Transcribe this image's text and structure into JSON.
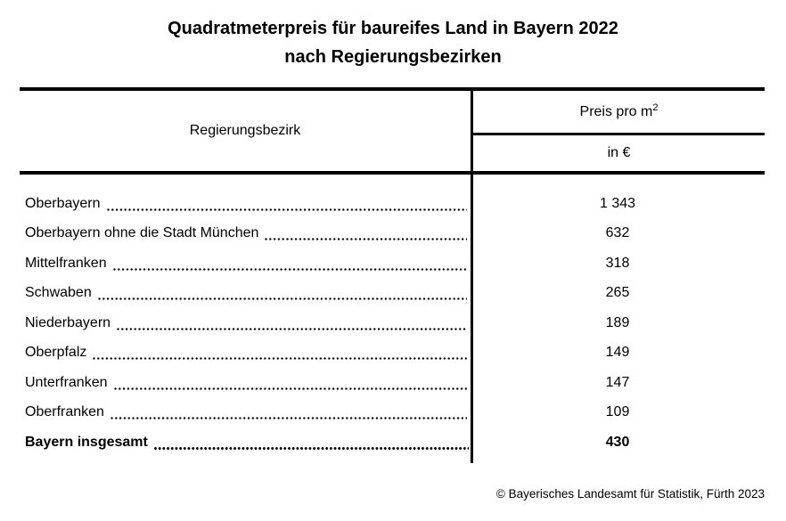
{
  "title": {
    "line1": "Quadratmeterpreis für baureifes Land in Bayern 2022",
    "line2": "nach Regierungsbezirken"
  },
  "table": {
    "col1_header": "Regierungsbezirk",
    "col2_header": "Preis pro m",
    "col2_header_sup": "2",
    "col2_subheader": "in €",
    "rows": [
      {
        "label": "Oberbayern",
        "value": "1 343",
        "bold": false
      },
      {
        "label": "Oberbayern ohne die Stadt München",
        "value": "632",
        "bold": false
      },
      {
        "label": "Mittelfranken",
        "value": "318",
        "bold": false
      },
      {
        "label": "Schwaben",
        "value": "265",
        "bold": false
      },
      {
        "label": "Niederbayern",
        "value": "189",
        "bold": false
      },
      {
        "label": "Oberpfalz",
        "value": "149",
        "bold": false
      },
      {
        "label": "Unterfranken",
        "value": "147",
        "bold": false
      },
      {
        "label": "Oberfranken",
        "value": "109",
        "bold": false
      },
      {
        "label": "Bayern insgesamt",
        "value": "430",
        "bold": true
      }
    ]
  },
  "footer": {
    "credit": "© Bayerisches Landesamt für Statistik, Fürth 2023"
  },
  "colors": {
    "text": "#000000",
    "background": "#ffffff",
    "border": "#000000"
  }
}
